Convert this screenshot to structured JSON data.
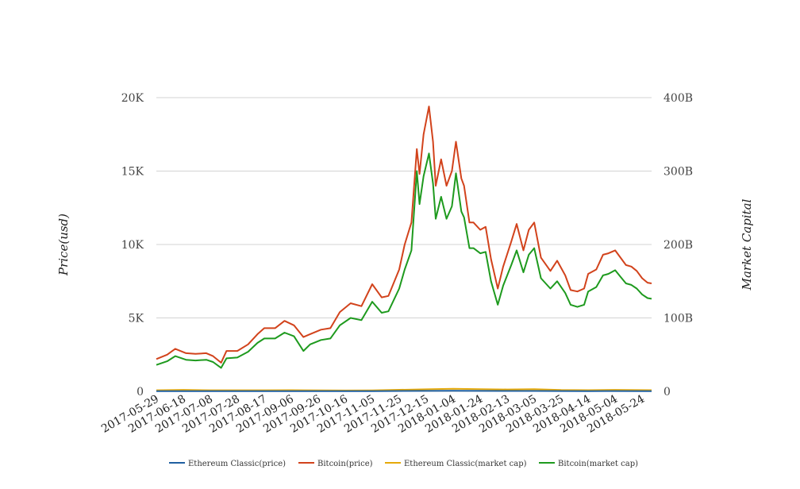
{
  "chart_data": {
    "type": "line",
    "ylabel": "Price(usd)",
    "y2label": "Market Capital",
    "ylim": [
      0,
      20000
    ],
    "y2lim": [
      0,
      400000000000
    ],
    "yticks": [
      "0",
      "5K",
      "10K",
      "15K",
      "20K"
    ],
    "y2ticks": [
      "0",
      "100B",
      "200B",
      "300B",
      "400B"
    ],
    "xlim": [
      "2017-05-29",
      "2018-05-31"
    ],
    "xticks": [
      "2017-05-29",
      "2017-06-18",
      "2017-07-08",
      "2017-07-28",
      "2017-08-17",
      "2017-09-06",
      "2017-09-26",
      "2017-10-16",
      "2017-11-05",
      "2017-11-25",
      "2017-12-15",
      "2018-01-04",
      "2018-01-24",
      "2018-02-13",
      "2018-03-05",
      "2018-03-25",
      "2018-04-14",
      "2018-05-04",
      "2018-05-24"
    ],
    "grid": true,
    "legend_position": "bottom",
    "series": [
      {
        "name": "Ethereum Classic(price)",
        "axis": "left",
        "color": "#1f5fa0",
        "x": [
          "2017-05-29",
          "2017-07-08",
          "2017-09-06",
          "2017-11-05",
          "2017-12-15",
          "2018-01-04",
          "2018-01-24",
          "2018-03-05",
          "2018-04-14",
          "2018-05-04",
          "2018-05-31"
        ],
        "y": [
          17,
          15,
          16,
          17,
          30,
          38,
          32,
          28,
          17,
          20,
          16
        ]
      },
      {
        "name": "Bitcoin(price)",
        "axis": "left",
        "color": "#d2431c",
        "x": [
          "2017-05-29",
          "2017-06-06",
          "2017-06-12",
          "2017-06-20",
          "2017-06-27",
          "2017-07-05",
          "2017-07-10",
          "2017-07-16",
          "2017-07-20",
          "2017-07-28",
          "2017-08-05",
          "2017-08-12",
          "2017-08-17",
          "2017-08-25",
          "2017-09-01",
          "2017-09-08",
          "2017-09-15",
          "2017-09-20",
          "2017-09-28",
          "2017-10-05",
          "2017-10-12",
          "2017-10-20",
          "2017-10-28",
          "2017-11-05",
          "2017-11-12",
          "2017-11-17",
          "2017-11-25",
          "2017-11-29",
          "2017-12-04",
          "2017-12-08",
          "2017-12-10",
          "2017-12-13",
          "2017-12-17",
          "2017-12-20",
          "2017-12-22",
          "2017-12-26",
          "2017-12-30",
          "2018-01-03",
          "2018-01-06",
          "2018-01-10",
          "2018-01-12",
          "2018-01-16",
          "2018-01-19",
          "2018-01-24",
          "2018-01-28",
          "2018-02-01",
          "2018-02-06",
          "2018-02-10",
          "2018-02-16",
          "2018-02-20",
          "2018-02-25",
          "2018-03-01",
          "2018-03-05",
          "2018-03-10",
          "2018-03-17",
          "2018-03-22",
          "2018-03-28",
          "2018-04-01",
          "2018-04-06",
          "2018-04-11",
          "2018-04-14",
          "2018-04-20",
          "2018-04-25",
          "2018-04-29",
          "2018-05-04",
          "2018-05-08",
          "2018-05-12",
          "2018-05-16",
          "2018-05-20",
          "2018-05-24",
          "2018-05-28",
          "2018-05-31"
        ],
        "y": [
          2200,
          2500,
          2900,
          2600,
          2550,
          2600,
          2400,
          1950,
          2750,
          2750,
          3200,
          3900,
          4300,
          4300,
          4800,
          4500,
          3700,
          3900,
          4200,
          4300,
          5400,
          6000,
          5800,
          7300,
          6400,
          6500,
          8300,
          10000,
          11500,
          16500,
          14800,
          17500,
          19400,
          17000,
          14000,
          15800,
          14000,
          15000,
          17000,
          14500,
          14000,
          11500,
          11500,
          11000,
          11200,
          9000,
          7000,
          8500,
          10200,
          11400,
          9600,
          11000,
          11500,
          9100,
          8200,
          8900,
          7900,
          6900,
          6800,
          7000,
          8000,
          8300,
          9300,
          9400,
          9600,
          9100,
          8600,
          8500,
          8200,
          7700,
          7400,
          7350
        ]
      },
      {
        "name": "Ethereum Classic(market cap)",
        "axis": "right",
        "color": "#e5a90a",
        "x": [
          "2017-05-29",
          "2017-06-18",
          "2017-07-08",
          "2017-08-17",
          "2017-09-06",
          "2017-10-16",
          "2017-11-05",
          "2017-12-15",
          "2018-01-04",
          "2018-01-24",
          "2018-02-13",
          "2018-03-05",
          "2018-03-25",
          "2018-04-14",
          "2018-05-04",
          "2018-05-31"
        ],
        "y": [
          1500000000,
          2000000000,
          1500000000,
          1500000000,
          1600000000,
          1200000000,
          1400000000,
          2800000000,
          3500000000,
          3000000000,
          2600000000,
          3000000000,
          1800000000,
          1600000000,
          2000000000,
          1600000000
        ]
      },
      {
        "name": "Bitcoin(market cap)",
        "axis": "right",
        "color": "#1e9a1e",
        "x": [
          "2017-05-29",
          "2017-06-06",
          "2017-06-12",
          "2017-06-20",
          "2017-06-27",
          "2017-07-05",
          "2017-07-10",
          "2017-07-16",
          "2017-07-20",
          "2017-07-28",
          "2017-08-05",
          "2017-08-12",
          "2017-08-17",
          "2017-08-25",
          "2017-09-01",
          "2017-09-08",
          "2017-09-15",
          "2017-09-20",
          "2017-09-28",
          "2017-10-05",
          "2017-10-12",
          "2017-10-20",
          "2017-10-28",
          "2017-11-05",
          "2017-11-12",
          "2017-11-17",
          "2017-11-25",
          "2017-11-29",
          "2017-12-04",
          "2017-12-08",
          "2017-12-10",
          "2017-12-13",
          "2017-12-17",
          "2017-12-20",
          "2017-12-22",
          "2017-12-26",
          "2017-12-30",
          "2018-01-03",
          "2018-01-06",
          "2018-01-10",
          "2018-01-12",
          "2018-01-16",
          "2018-01-19",
          "2018-01-24",
          "2018-01-28",
          "2018-02-01",
          "2018-02-06",
          "2018-02-10",
          "2018-02-16",
          "2018-02-20",
          "2018-02-25",
          "2018-03-01",
          "2018-03-05",
          "2018-03-10",
          "2018-03-17",
          "2018-03-22",
          "2018-03-28",
          "2018-04-01",
          "2018-04-06",
          "2018-04-11",
          "2018-04-14",
          "2018-04-20",
          "2018-04-25",
          "2018-04-29",
          "2018-05-04",
          "2018-05-08",
          "2018-05-12",
          "2018-05-16",
          "2018-05-20",
          "2018-05-24",
          "2018-05-28",
          "2018-05-31"
        ],
        "y": [
          36000000000,
          41000000000,
          48000000000,
          43000000000,
          42000000000,
          43000000000,
          40000000000,
          32000000000,
          45000000000,
          46000000000,
          54000000000,
          66000000000,
          72000000000,
          72000000000,
          80000000000,
          75000000000,
          55000000000,
          64000000000,
          70000000000,
          72000000000,
          90000000000,
          100000000000,
          97000000000,
          122000000000,
          107000000000,
          109000000000,
          140000000000,
          166000000000,
          192000000000,
          300000000000,
          255000000000,
          293000000000,
          324000000000,
          283000000000,
          235000000000,
          265000000000,
          235000000000,
          252000000000,
          297000000000,
          245000000000,
          237000000000,
          195000000000,
          195000000000,
          188000000000,
          190000000000,
          150000000000,
          118000000000,
          144000000000,
          172000000000,
          192000000000,
          162000000000,
          186000000000,
          195000000000,
          154000000000,
          140000000000,
          150000000000,
          134000000000,
          118000000000,
          115000000000,
          118000000000,
          136000000000,
          142000000000,
          158000000000,
          160000000000,
          165000000000,
          156000000000,
          147000000000,
          145000000000,
          140000000000,
          132000000000,
          127000000000,
          126000000000
        ]
      }
    ]
  }
}
